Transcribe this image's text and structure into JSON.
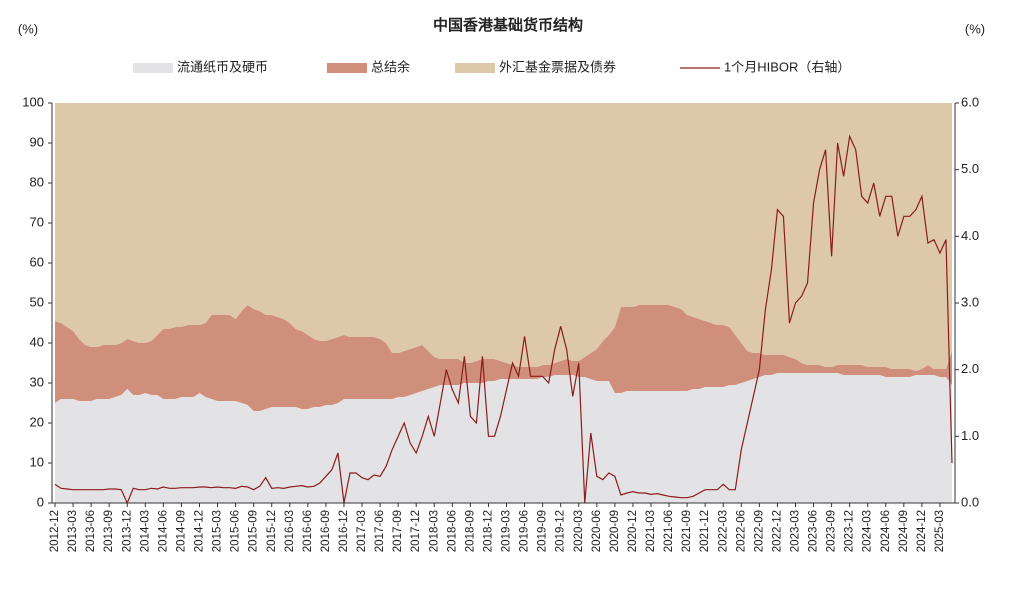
{
  "chart_data": {
    "type": "stacked-area-line",
    "title": "中国香港基础货币结构",
    "ylabel": "(%)",
    "y2label": "(%)",
    "categories": [
      "2012-12",
      null,
      null,
      "2013-03",
      null,
      null,
      "2013-06",
      null,
      null,
      "2013-09",
      null,
      null,
      "2013-12",
      null,
      null,
      "2014-03",
      null,
      null,
      "2014-06",
      null,
      null,
      "2014-09",
      null,
      null,
      "2014-12",
      null,
      null,
      "2015-03",
      null,
      null,
      "2015-06",
      null,
      null,
      "2015-09",
      null,
      null,
      "2015-12",
      null,
      null,
      "2016-03",
      null,
      null,
      "2016-06",
      null,
      null,
      "2016-09",
      null,
      null,
      "2016-12",
      null,
      null,
      "2017-03",
      null,
      null,
      "2017-06",
      null,
      null,
      "2017-09",
      null,
      null,
      "2017-12",
      null,
      null,
      "2018-03",
      null,
      null,
      "2018-06",
      null,
      null,
      "2018-09",
      null,
      null,
      "2018-12",
      null,
      null,
      "2019-03",
      null,
      null,
      "2019-06",
      null,
      null,
      "2019-09",
      null,
      null,
      "2019-12",
      null,
      null,
      "2020-03",
      null,
      null,
      "2020-06",
      null,
      null,
      "2020-09",
      null,
      null,
      "2020-12",
      null,
      null,
      "2021-03",
      null,
      null,
      "2021-06",
      null,
      null,
      "2021-09",
      null,
      null,
      "2021-12",
      null,
      null,
      "2022-03",
      null,
      null,
      "2022-06",
      null,
      null,
      "2022-09",
      null,
      null,
      "2022-12",
      null,
      null,
      "2023-03",
      null,
      null,
      "2023-06",
      null,
      null,
      "2023-09",
      null,
      null,
      "2023-12",
      null,
      null,
      "2024-03",
      null,
      null,
      "2024-06",
      null,
      null,
      "2024-09",
      null,
      null,
      "2024-12",
      null,
      null,
      "2025-03",
      null,
      null
    ],
    "series": [
      {
        "name": "流通纸币及硬币",
        "color": "#e3e3e5",
        "values": [
          25,
          26,
          26,
          26,
          25.5,
          25.5,
          25.5,
          26,
          26,
          26,
          26.5,
          27,
          28.5,
          27,
          27,
          27.5,
          27,
          27,
          26,
          26,
          26,
          26.5,
          26.5,
          26.5,
          27.5,
          26.5,
          26,
          25.5,
          25.5,
          25.5,
          25.5,
          25,
          24.5,
          23,
          23,
          23.5,
          24,
          24,
          24,
          24,
          24,
          23.5,
          23.5,
          24,
          24,
          24.5,
          24.5,
          25,
          26,
          26,
          26,
          26,
          26,
          26,
          26,
          26,
          26,
          26.5,
          26.5,
          27,
          27.5,
          28,
          28.5,
          29,
          29.5,
          29.5,
          29.5,
          29.5,
          30,
          30,
          30,
          30,
          30.5,
          30.5,
          31,
          31,
          31,
          31,
          31,
          31,
          31,
          31.5,
          31.5,
          32,
          32,
          32,
          32,
          31.5,
          31.5,
          31,
          30.5,
          30.5,
          30.5,
          27.5,
          27.5,
          28,
          28,
          28,
          28,
          28,
          28,
          28,
          28,
          28,
          28,
          28,
          28.5,
          28.5,
          29,
          29,
          29,
          29,
          29.5,
          29.5,
          30,
          30.5,
          31,
          31.5,
          32,
          32,
          32.5,
          32.5,
          32.5,
          32.5,
          32.5,
          32.5,
          32.5,
          32.5,
          32.5,
          32.5,
          32.5,
          32,
          32,
          32,
          32,
          32,
          32,
          32,
          31.5,
          31.5,
          31.5,
          31.5,
          31.5,
          32,
          32,
          32,
          32,
          31.5,
          31.5,
          29.5
        ]
      },
      {
        "name": "总结余",
        "color": "#d08f7b",
        "values": [
          20.5,
          19,
          18,
          17,
          15.5,
          14,
          13.5,
          13,
          13.5,
          13.5,
          13,
          13,
          12.5,
          13.5,
          13,
          12.5,
          13.5,
          15,
          17.5,
          17.5,
          18,
          17.5,
          18,
          18,
          17,
          18.5,
          21,
          21.5,
          21.5,
          21.5,
          20.5,
          23,
          25,
          25.5,
          25,
          23.5,
          23,
          22.5,
          22,
          21,
          19.5,
          19.5,
          18.5,
          17,
          16.5,
          16,
          16.5,
          16.5,
          16,
          15.5,
          15.5,
          15.5,
          15.5,
          15.5,
          15,
          14,
          11.5,
          11,
          11.5,
          11.5,
          11.5,
          11.5,
          9.5,
          7.5,
          6.5,
          6.5,
          6.5,
          6.5,
          5,
          5,
          5.5,
          6,
          5.5,
          5.5,
          4.5,
          4,
          3.5,
          3,
          3,
          3,
          3,
          3,
          3,
          3,
          3.5,
          4,
          3.5,
          4,
          5,
          6.5,
          8,
          10,
          11.5,
          16.5,
          21.5,
          21,
          21,
          21.5,
          21.5,
          21.5,
          21.5,
          21.5,
          21.5,
          21,
          20.5,
          19,
          18,
          17.5,
          16.5,
          16,
          15.5,
          15.5,
          14.5,
          12.5,
          10,
          7.5,
          6.5,
          6,
          5,
          5,
          4.5,
          4.5,
          4,
          3.5,
          2.5,
          2,
          2,
          2,
          1.5,
          1.5,
          2,
          2.5,
          2.5,
          2.5,
          2.5,
          2,
          2,
          2,
          2.5,
          2,
          2,
          2,
          2,
          1,
          1.5,
          2.5,
          1.5,
          2,
          2,
          8.5
        ]
      },
      {
        "name": "外汇基金票据及债券",
        "color": "#ddc9a9",
        "values": [
          54.5,
          55,
          56,
          57,
          59,
          60.5,
          61,
          61,
          60.5,
          60.5,
          60.5,
          60,
          59,
          59.5,
          60,
          60,
          59.5,
          58,
          56.5,
          56.5,
          56,
          56,
          55.5,
          55.5,
          55.5,
          55,
          53,
          53,
          53,
          53,
          54,
          52,
          50.5,
          51.5,
          52,
          53,
          53,
          53.5,
          54,
          55,
          56.5,
          57,
          58,
          59,
          59.5,
          59.5,
          59,
          58.5,
          58,
          58.5,
          58.5,
          58.5,
          58.5,
          58.5,
          59,
          60,
          62.5,
          62.5,
          62,
          61.5,
          61,
          60.5,
          62,
          63.5,
          64,
          64,
          64,
          64,
          65,
          65,
          64.5,
          64,
          64,
          64,
          64.5,
          65,
          65.5,
          66,
          66,
          66,
          66,
          65.5,
          65.5,
          65,
          64.5,
          64,
          64.5,
          64.5,
          63.5,
          62.5,
          61.5,
          59.5,
          58,
          56,
          51,
          51,
          51,
          50.5,
          50.5,
          50.5,
          50.5,
          50.5,
          50.5,
          51,
          51.5,
          53,
          53.5,
          54,
          54.5,
          55,
          55.5,
          55.5,
          56,
          58,
          60,
          62,
          62.5,
          62.5,
          63,
          63,
          63,
          63,
          63.5,
          64,
          65,
          65.5,
          65.5,
          65.5,
          66,
          66,
          65.5,
          65.5,
          65.5,
          65.5,
          65.5,
          66,
          66,
          66,
          66,
          66.5,
          66.5,
          66.5,
          66.5,
          67,
          66.5,
          65.5,
          66.5,
          66.5,
          66.5,
          62
        ]
      },
      {
        "name": "1个月HIBOR（右轴）",
        "color": "#8b1c1c",
        "axis": "y2",
        "values": [
          0.28,
          0.22,
          0.21,
          0.2,
          0.2,
          0.2,
          0.2,
          0.2,
          0.2,
          0.21,
          0.21,
          0.2,
          0.0,
          0.22,
          0.2,
          0.2,
          0.22,
          0.21,
          0.24,
          0.22,
          0.22,
          0.23,
          0.23,
          0.23,
          0.24,
          0.24,
          0.23,
          0.24,
          0.23,
          0.23,
          0.22,
          0.25,
          0.24,
          0.2,
          0.25,
          0.38,
          0.22,
          0.23,
          0.22,
          0.24,
          0.25,
          0.26,
          0.24,
          0.25,
          0.3,
          0.4,
          0.5,
          0.75,
          0.0,
          0.45,
          0.45,
          0.38,
          0.35,
          0.42,
          0.4,
          0.55,
          0.8,
          1.0,
          1.2,
          0.9,
          0.75,
          1.0,
          1.3,
          1.0,
          1.5,
          2.0,
          1.7,
          1.5,
          2.2,
          1.3,
          1.2,
          2.2,
          1.0,
          1.0,
          1.3,
          1.7,
          2.1,
          1.9,
          2.5,
          1.9,
          1.9,
          1.9,
          1.8,
          2.3,
          2.65,
          2.3,
          1.6,
          2.1,
          0.0,
          1.05,
          0.4,
          0.35,
          0.45,
          0.4,
          0.12,
          0.15,
          0.17,
          0.15,
          0.15,
          0.13,
          0.14,
          0.12,
          0.1,
          0.09,
          0.08,
          0.08,
          0.1,
          0.15,
          0.2,
          0.2,
          0.2,
          0.28,
          0.2,
          0.2,
          0.8,
          1.2,
          1.6,
          2.0,
          2.9,
          3.5,
          4.4,
          4.3,
          2.7,
          3.0,
          3.1,
          3.3,
          4.5,
          5.0,
          5.3,
          3.7,
          5.4,
          4.9,
          5.5,
          5.3,
          4.6,
          4.5,
          4.8,
          4.3,
          4.6,
          4.6,
          4.0,
          4.3,
          4.3,
          4.4,
          4.6,
          3.9,
          3.95,
          3.75,
          3.95,
          0.6
        ]
      }
    ],
    "ylim": [
      0,
      100
    ],
    "yticks": [
      0,
      10,
      20,
      30,
      40,
      50,
      60,
      70,
      80,
      90,
      100
    ],
    "y2lim": [
      0,
      6
    ],
    "y2ticks": [
      {
        "value": 0,
        "label": "0.0"
      },
      {
        "value": 1,
        "label": "1.0"
      },
      {
        "value": 2,
        "label": "2.0"
      },
      {
        "value": 3,
        "label": "3.0"
      },
      {
        "value": 4,
        "label": "4.0"
      },
      {
        "value": 5,
        "label": "5.0"
      },
      {
        "value": 6,
        "label": "6.0"
      }
    ],
    "legend": "top"
  }
}
